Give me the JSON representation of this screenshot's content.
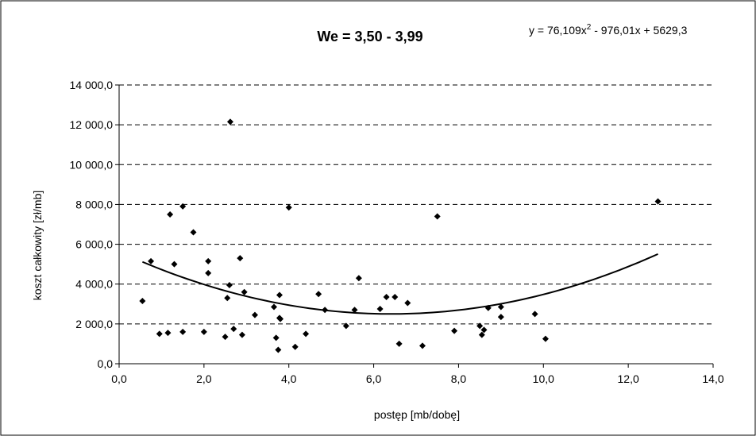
{
  "chart_data": {
    "type": "scatter",
    "title": "We = 3,50 - 3,99",
    "xlabel": "postęp [mb/dobę]",
    "ylabel": "koszt całkowity [zł/mb]",
    "xlim": [
      0,
      14
    ],
    "ylim": [
      0,
      14000
    ],
    "x_ticks": [
      0,
      2,
      4,
      6,
      8,
      10,
      12,
      14
    ],
    "y_ticks": [
      0,
      2000,
      4000,
      6000,
      8000,
      10000,
      12000,
      14000
    ],
    "x_tick_labels": [
      "0,0",
      "2,0",
      "4,0",
      "6,0",
      "8,0",
      "10,0",
      "12,0",
      "14,0"
    ],
    "y_tick_labels": [
      "0,0",
      "2 000,0",
      "4 000,0",
      "6 000,0",
      "8 000,0",
      "10 000,0",
      "12 000,0",
      "14 000,0"
    ],
    "grid": {
      "y_major": true,
      "style": "dashed"
    },
    "marker": "diamond",
    "marker_color": "#000000",
    "trendline": {
      "type": "polynomial",
      "coefficients": [
        76.109,
        -976.01,
        5629.3
      ],
      "x_range": [
        0.55,
        12.7
      ],
      "equation_parts": [
        "y = 76,109x",
        "2",
        " - 976,01x + 5629,3"
      ]
    },
    "points": [
      {
        "x": 0.55,
        "y": 3150
      },
      {
        "x": 0.75,
        "y": 5150
      },
      {
        "x": 0.95,
        "y": 1500
      },
      {
        "x": 1.15,
        "y": 1550
      },
      {
        "x": 1.2,
        "y": 7500
      },
      {
        "x": 1.3,
        "y": 5000
      },
      {
        "x": 1.5,
        "y": 7900
      },
      {
        "x": 1.5,
        "y": 1600
      },
      {
        "x": 1.75,
        "y": 6600
      },
      {
        "x": 2.0,
        "y": 1600
      },
      {
        "x": 2.1,
        "y": 5150
      },
      {
        "x": 2.1,
        "y": 4550
      },
      {
        "x": 2.5,
        "y": 1350
      },
      {
        "x": 2.55,
        "y": 3300
      },
      {
        "x": 2.6,
        "y": 3950
      },
      {
        "x": 2.62,
        "y": 12150
      },
      {
        "x": 2.7,
        "y": 1750
      },
      {
        "x": 2.85,
        "y": 5300
      },
      {
        "x": 2.9,
        "y": 1450
      },
      {
        "x": 2.95,
        "y": 3600
      },
      {
        "x": 3.2,
        "y": 2450
      },
      {
        "x": 3.65,
        "y": 2850
      },
      {
        "x": 3.7,
        "y": 1300
      },
      {
        "x": 3.75,
        "y": 700
      },
      {
        "x": 3.78,
        "y": 2300
      },
      {
        "x": 3.78,
        "y": 3450
      },
      {
        "x": 3.8,
        "y": 2250
      },
      {
        "x": 4.0,
        "y": 7850
      },
      {
        "x": 4.15,
        "y": 850
      },
      {
        "x": 4.4,
        "y": 1500
      },
      {
        "x": 4.7,
        "y": 3500
      },
      {
        "x": 4.85,
        "y": 2700
      },
      {
        "x": 5.35,
        "y": 1900
      },
      {
        "x": 5.55,
        "y": 2700
      },
      {
        "x": 5.65,
        "y": 4300
      },
      {
        "x": 6.15,
        "y": 2750
      },
      {
        "x": 6.3,
        "y": 3350
      },
      {
        "x": 6.5,
        "y": 3350
      },
      {
        "x": 6.6,
        "y": 1000
      },
      {
        "x": 6.8,
        "y": 3050
      },
      {
        "x": 7.15,
        "y": 900
      },
      {
        "x": 7.5,
        "y": 7400
      },
      {
        "x": 7.9,
        "y": 1650
      },
      {
        "x": 8.5,
        "y": 1900
      },
      {
        "x": 8.55,
        "y": 1450
      },
      {
        "x": 8.6,
        "y": 1700
      },
      {
        "x": 8.7,
        "y": 2800
      },
      {
        "x": 9.0,
        "y": 2850
      },
      {
        "x": 9.0,
        "y": 2350
      },
      {
        "x": 9.8,
        "y": 2500
      },
      {
        "x": 10.05,
        "y": 1250
      },
      {
        "x": 12.7,
        "y": 8150
      }
    ]
  }
}
